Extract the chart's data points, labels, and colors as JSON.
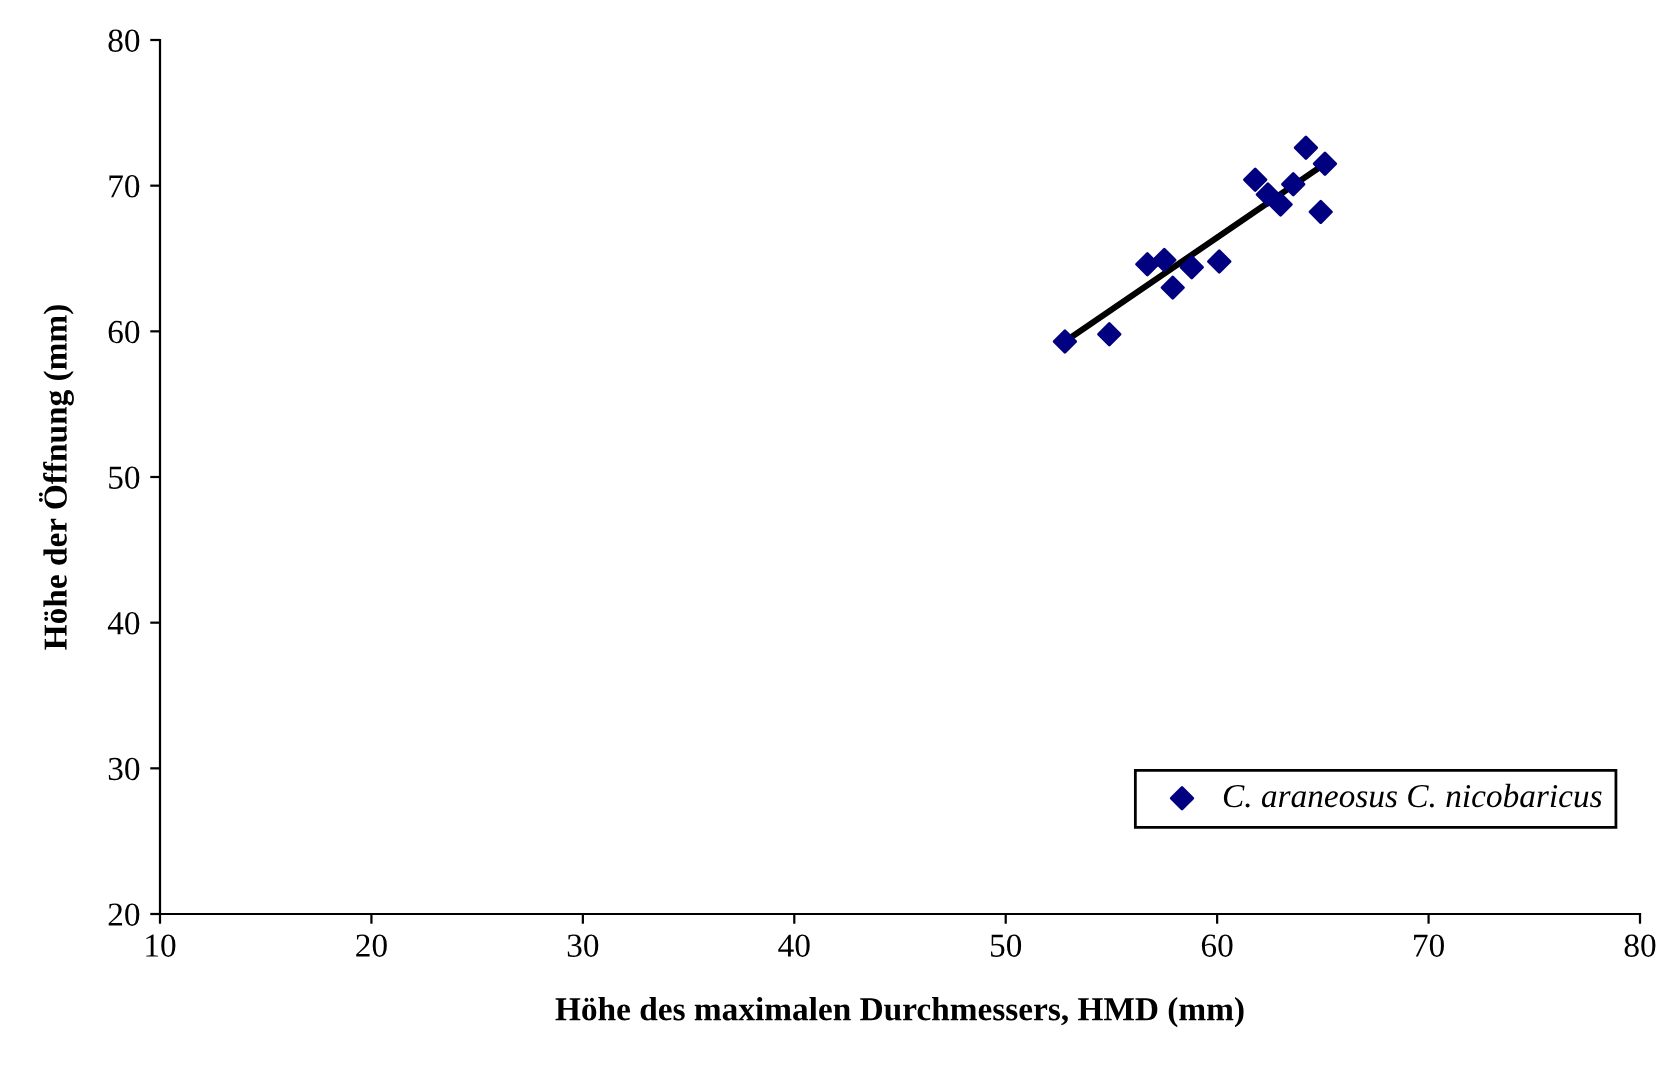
{
  "chart_data": {
    "type": "scatter",
    "xlabel": "Höhe des maximalen Durchmessers, HMD (mm)",
    "ylabel": "Höhe der Öffnung (mm)",
    "xlim": [
      10,
      80
    ],
    "xticks": [
      10,
      20,
      30,
      40,
      50,
      60,
      70,
      80
    ],
    "ylim": [
      20,
      80
    ],
    "yticks": [
      20,
      30,
      40,
      50,
      60,
      70,
      80
    ],
    "grid": false,
    "legend": "bottom right",
    "series": [
      {
        "name": "C. araneosus C. nicobaricus",
        "color": "#000080",
        "marker": "diamond",
        "x": [
          52.8,
          54.9,
          56.7,
          57.5,
          57.9,
          58.8,
          60.1,
          61.8,
          62.4,
          63.0,
          63.6,
          64.2,
          64.9,
          65.1
        ],
        "values": [
          59.3,
          59.8,
          64.6,
          64.9,
          63.0,
          64.4,
          64.8,
          70.4,
          69.4,
          68.7,
          70.1,
          72.6,
          68.2,
          71.5
        ]
      },
      {
        "type": "line",
        "marker": "none",
        "color": "#000000",
        "x": [
          52.8,
          65.1
        ],
        "values": [
          59.3,
          71.5
        ]
      }
    ]
  }
}
